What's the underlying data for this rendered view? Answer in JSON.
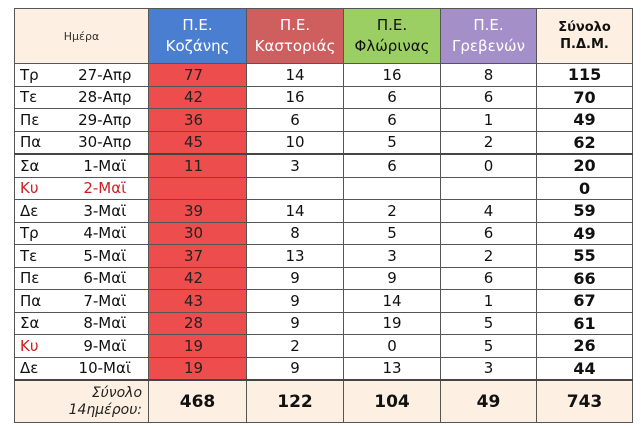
{
  "header": {
    "day": "Ημέρα",
    "kozani": [
      "Π.Ε.",
      "Κοζάνης"
    ],
    "kastoria": [
      "Π.Ε.",
      "Καστοριάς"
    ],
    "florina": [
      "Π.Ε.",
      "Φλώρινας"
    ],
    "grevena": [
      "Π.Ε.",
      "Γρεβενών"
    ],
    "total": [
      "Σύνολο",
      "Π.Δ.Μ."
    ]
  },
  "rows": [
    {
      "dn": "Τρ",
      "date": "27-Απρ",
      "kozani": "77",
      "kastoria": "14",
      "florina": "16",
      "grevena": "8",
      "total": "115"
    },
    {
      "dn": "Τε",
      "date": "28-Απρ",
      "kozani": "42",
      "kastoria": "16",
      "florina": "6",
      "grevena": "6",
      "total": "70"
    },
    {
      "dn": "Πε",
      "date": "29-Απρ",
      "kozani": "36",
      "kastoria": "6",
      "florina": "6",
      "grevena": "1",
      "total": "49"
    },
    {
      "dn": "Πα",
      "date": "30-Απρ",
      "kozani": "45",
      "kastoria": "10",
      "florina": "5",
      "grevena": "2",
      "total": "62"
    },
    {
      "dn": "Σα",
      "date": "1-Μαϊ",
      "kozani": "11",
      "kastoria": "3",
      "florina": "6",
      "grevena": "0",
      "total": "20"
    },
    {
      "dn": "Κυ",
      "date": "2-Μαϊ",
      "kozani": "",
      "kastoria": "",
      "florina": "",
      "grevena": "",
      "total": "0"
    },
    {
      "dn": "Δε",
      "date": "3-Μαϊ",
      "kozani": "39",
      "kastoria": "14",
      "florina": "2",
      "grevena": "4",
      "total": "59"
    },
    {
      "dn": "Τρ",
      "date": "4-Μαϊ",
      "kozani": "30",
      "kastoria": "8",
      "florina": "5",
      "grevena": "6",
      "total": "49"
    },
    {
      "dn": "Τε",
      "date": "5-Μαϊ",
      "kozani": "37",
      "kastoria": "13",
      "florina": "3",
      "grevena": "2",
      "total": "55"
    },
    {
      "dn": "Πε",
      "date": "6-Μαϊ",
      "kozani": "42",
      "kastoria": "9",
      "florina": "9",
      "grevena": "6",
      "total": "66"
    },
    {
      "dn": "Πα",
      "date": "7-Μαϊ",
      "kozani": "43",
      "kastoria": "9",
      "florina": "14",
      "grevena": "1",
      "total": "67"
    },
    {
      "dn": "Σα",
      "date": "8-Μαϊ",
      "kozani": "28",
      "kastoria": "9",
      "florina": "19",
      "grevena": "5",
      "total": "61"
    },
    {
      "dn": "Κυ",
      "date": "9-Μαϊ",
      "kozani": "19",
      "kastoria": "2",
      "florina": "0",
      "grevena": "5",
      "total": "26"
    },
    {
      "dn": "Δε",
      "date": "10-Μαϊ",
      "kozani": "19",
      "kastoria": "9",
      "florina": "13",
      "grevena": "3",
      "total": "44"
    }
  ],
  "summary": {
    "label": [
      "Σύνολο",
      "14ημέρου:"
    ],
    "kozani": "468",
    "kastoria": "122",
    "florina": "104",
    "grevena": "49",
    "total": "743"
  },
  "colors": {
    "kozani_header": "#4a7ed0",
    "kastoria_header": "#cf5f5f",
    "florina_header": "#9ccf63",
    "grevena_header": "#a58fc9",
    "kozani_cells": "#ee4d4d",
    "sunday_text": "#cc1f1f",
    "header_bg": "#fdf0e2"
  }
}
